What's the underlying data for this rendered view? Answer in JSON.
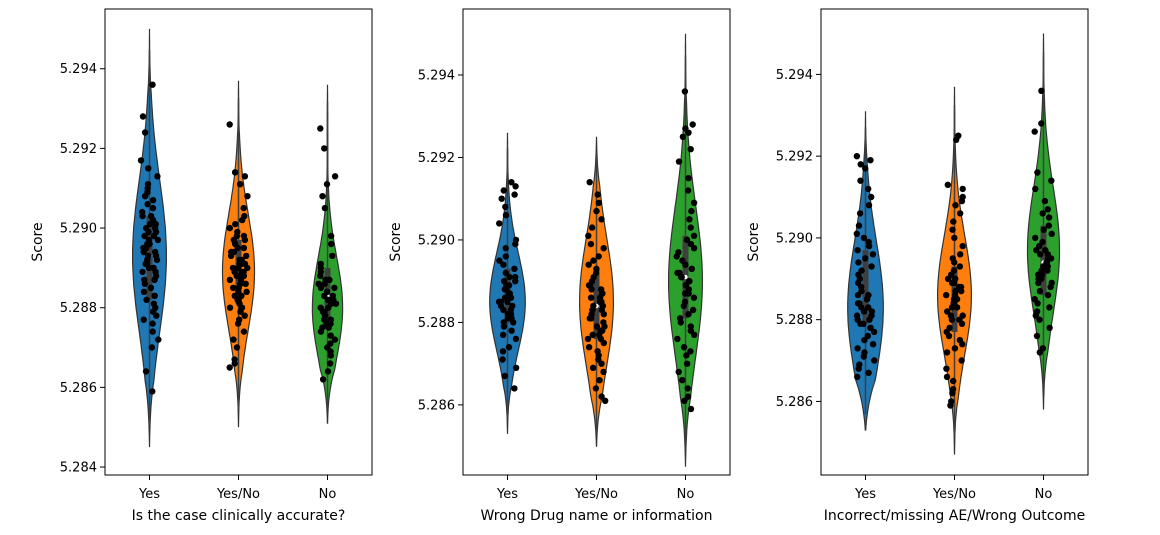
{
  "chart_data": [
    {
      "type": "violin",
      "xlabel": "Is the case clinically accurate?",
      "ylabel": "Score",
      "categories": [
        "Yes",
        "Yes/No",
        "No"
      ],
      "ylim": [
        5.2838,
        5.2955
      ],
      "yticks": [
        5.284,
        5.286,
        5.288,
        5.29,
        5.292,
        5.294
      ],
      "ytick_labels": [
        "5.284",
        "5.286",
        "5.288",
        "5.290",
        "5.292",
        "5.294"
      ],
      "series": [
        {
          "name": "Yes",
          "color": "#1f77b4",
          "extent": [
            5.2845,
            5.295
          ],
          "median": 5.2893,
          "q1": 5.2882,
          "q3": 5.2903,
          "max_halfwidth": 0.19,
          "mode": 5.2893,
          "points": [
            5.2859,
            5.2864,
            5.287,
            5.2872,
            5.2874,
            5.2876,
            5.2877,
            5.2878,
            5.2879,
            5.288,
            5.2881,
            5.2882,
            5.2883,
            5.2884,
            5.2885,
            5.2886,
            5.2887,
            5.2887,
            5.2888,
            5.2889,
            5.2889,
            5.289,
            5.289,
            5.2891,
            5.2891,
            5.2892,
            5.2892,
            5.2893,
            5.2893,
            5.2893,
            5.2894,
            5.2894,
            5.2895,
            5.2895,
            5.2896,
            5.2896,
            5.2897,
            5.2897,
            5.2898,
            5.2898,
            5.2899,
            5.2899,
            5.29,
            5.29,
            5.2901,
            5.2901,
            5.2902,
            5.2903,
            5.2903,
            5.2904,
            5.2905,
            5.2906,
            5.2907,
            5.2908,
            5.2909,
            5.291,
            5.2911,
            5.2913,
            5.2915,
            5.2917,
            5.2924,
            5.2928,
            5.2936
          ]
        },
        {
          "name": "Yes/No",
          "color": "#ff7f0e",
          "extent": [
            5.285,
            5.2937
          ],
          "median": 5.289,
          "q1": 5.2881,
          "q3": 5.2897,
          "max_halfwidth": 0.18,
          "mode": 5.2889,
          "points": [
            5.2865,
            5.2866,
            5.2867,
            5.287,
            5.2872,
            5.2874,
            5.2876,
            5.2877,
            5.2878,
            5.2879,
            5.288,
            5.288,
            5.2881,
            5.2882,
            5.2882,
            5.2883,
            5.2883,
            5.2884,
            5.2884,
            5.2885,
            5.2885,
            5.2886,
            5.2886,
            5.2887,
            5.2887,
            5.2888,
            5.2888,
            5.2888,
            5.2889,
            5.2889,
            5.2889,
            5.289,
            5.289,
            5.289,
            5.2891,
            5.2891,
            5.2891,
            5.2892,
            5.2892,
            5.2893,
            5.2893,
            5.2894,
            5.2894,
            5.2895,
            5.2895,
            5.2896,
            5.2897,
            5.2897,
            5.2898,
            5.2898,
            5.2899,
            5.29,
            5.2901,
            5.2902,
            5.2903,
            5.2905,
            5.2908,
            5.2911,
            5.2913,
            5.2914,
            5.2926
          ]
        },
        {
          "name": "No",
          "color": "#2ca02c",
          "extent": [
            5.2851,
            5.2936
          ],
          "median": 5.2883,
          "q1": 5.2876,
          "q3": 5.289,
          "max_halfwidth": 0.17,
          "mode": 5.288,
          "points": [
            5.2862,
            5.2864,
            5.2866,
            5.2868,
            5.2869,
            5.287,
            5.2871,
            5.2872,
            5.2873,
            5.2874,
            5.2875,
            5.2875,
            5.2876,
            5.2876,
            5.2877,
            5.2877,
            5.2878,
            5.2878,
            5.2879,
            5.2879,
            5.288,
            5.288,
            5.2881,
            5.2881,
            5.2882,
            5.2882,
            5.2883,
            5.2883,
            5.2884,
            5.2884,
            5.2885,
            5.2885,
            5.2886,
            5.2886,
            5.2887,
            5.2887,
            5.2888,
            5.2889,
            5.289,
            5.2891,
            5.2893,
            5.2896,
            5.2898,
            5.2905,
            5.2908,
            5.2911,
            5.2913,
            5.292,
            5.2925
          ]
        }
      ]
    },
    {
      "type": "violin",
      "xlabel": "Wrong Drug name or information",
      "ylabel": "Score",
      "categories": [
        "Yes",
        "Yes/No",
        "No"
      ],
      "ylim": [
        5.2843,
        5.2956
      ],
      "yticks": [
        5.286,
        5.288,
        5.29,
        5.292,
        5.294
      ],
      "ytick_labels": [
        "5.286",
        "5.288",
        "5.290",
        "5.292",
        "5.294"
      ],
      "series": [
        {
          "name": "Yes",
          "color": "#1f77b4",
          "extent": [
            5.2853,
            5.2926
          ],
          "median": 5.2886,
          "q1": 5.288,
          "q3": 5.2893,
          "max_halfwidth": 0.2,
          "mode": 5.2885,
          "points": [
            5.2864,
            5.2867,
            5.2869,
            5.2871,
            5.2873,
            5.2874,
            5.2876,
            5.2877,
            5.2878,
            5.2879,
            5.288,
            5.288,
            5.2881,
            5.2881,
            5.2882,
            5.2882,
            5.2883,
            5.2883,
            5.2884,
            5.2884,
            5.2885,
            5.2885,
            5.2885,
            5.2886,
            5.2886,
            5.2886,
            5.2887,
            5.2887,
            5.2888,
            5.2888,
            5.2889,
            5.2889,
            5.289,
            5.289,
            5.2891,
            5.2891,
            5.2892,
            5.2893,
            5.2894,
            5.2895,
            5.2896,
            5.2898,
            5.2899,
            5.29,
            5.2904,
            5.2906,
            5.2908,
            5.291,
            5.2911,
            5.2912,
            5.2913,
            5.2914
          ]
        },
        {
          "name": "Yes/No",
          "color": "#ff7f0e",
          "extent": [
            5.285,
            5.2925
          ],
          "median": 5.2884,
          "q1": 5.2876,
          "q3": 5.2893,
          "max_halfwidth": 0.19,
          "mode": 5.2885,
          "points": [
            5.2861,
            5.2862,
            5.2864,
            5.2866,
            5.2868,
            5.2869,
            5.287,
            5.2871,
            5.2872,
            5.2873,
            5.2874,
            5.2875,
            5.2876,
            5.2876,
            5.2877,
            5.2877,
            5.2878,
            5.2878,
            5.2879,
            5.2879,
            5.288,
            5.2881,
            5.2881,
            5.2882,
            5.2882,
            5.2883,
            5.2883,
            5.2884,
            5.2884,
            5.2885,
            5.2885,
            5.2886,
            5.2886,
            5.2887,
            5.2887,
            5.2888,
            5.2888,
            5.2889,
            5.2889,
            5.289,
            5.2891,
            5.2892,
            5.2893,
            5.2894,
            5.2895,
            5.2896,
            5.2898,
            5.2899,
            5.2901,
            5.2903,
            5.2905,
            5.2907,
            5.2909,
            5.2911,
            5.2914
          ]
        },
        {
          "name": "No",
          "color": "#2ca02c",
          "extent": [
            5.2845,
            5.295
          ],
          "median": 5.2891,
          "q1": 5.2881,
          "q3": 5.2901,
          "max_halfwidth": 0.19,
          "mode": 5.289,
          "points": [
            5.2859,
            5.2861,
            5.2862,
            5.2864,
            5.2866,
            5.2868,
            5.287,
            5.2872,
            5.2873,
            5.2874,
            5.2876,
            5.2877,
            5.2878,
            5.2879,
            5.288,
            5.2881,
            5.2882,
            5.2883,
            5.2884,
            5.2885,
            5.2886,
            5.2887,
            5.2887,
            5.2888,
            5.2889,
            5.2889,
            5.289,
            5.289,
            5.2891,
            5.2891,
            5.2892,
            5.2892,
            5.2893,
            5.2894,
            5.2895,
            5.2896,
            5.2897,
            5.2898,
            5.2899,
            5.29,
            5.2901,
            5.2903,
            5.2905,
            5.2907,
            5.2909,
            5.2912,
            5.2915,
            5.2919,
            5.2922,
            5.2925,
            5.2926,
            5.2927,
            5.2928,
            5.2936
          ]
        }
      ]
    },
    {
      "type": "violin",
      "xlabel": "Incorrect/missing AE/Wrong Outcome",
      "ylabel": "Score",
      "categories": [
        "Yes",
        "Yes/No",
        "No"
      ],
      "ylim": [
        5.2842,
        5.2956
      ],
      "yticks": [
        5.286,
        5.288,
        5.29,
        5.292,
        5.294
      ],
      "ytick_labels": [
        "5.286",
        "5.288",
        "5.290",
        "5.292",
        "5.294"
      ],
      "series": [
        {
          "name": "Yes",
          "color": "#1f77b4",
          "extent": [
            5.2853,
            5.2931
          ],
          "median": 5.2885,
          "q1": 5.2879,
          "q3": 5.2897,
          "max_halfwidth": 0.2,
          "mode": 5.2883,
          "points": [
            5.2866,
            5.2867,
            5.2868,
            5.2869,
            5.287,
            5.2871,
            5.2872,
            5.2873,
            5.2874,
            5.2875,
            5.2876,
            5.2877,
            5.2878,
            5.2878,
            5.2879,
            5.2879,
            5.288,
            5.288,
            5.2881,
            5.2881,
            5.2882,
            5.2882,
            5.2883,
            5.2883,
            5.2884,
            5.2884,
            5.2885,
            5.2885,
            5.2886,
            5.2886,
            5.2887,
            5.2888,
            5.2889,
            5.289,
            5.2891,
            5.2892,
            5.2893,
            5.2894,
            5.2895,
            5.2896,
            5.2897,
            5.2898,
            5.2899,
            5.29,
            5.2901,
            5.2903,
            5.2906,
            5.2908,
            5.291,
            5.2912,
            5.2914,
            5.2917,
            5.2918,
            5.2919,
            5.292
          ]
        },
        {
          "name": "Yes/No",
          "color": "#ff7f0e",
          "extent": [
            5.2847,
            5.2937
          ],
          "median": 5.2884,
          "q1": 5.2877,
          "q3": 5.2893,
          "max_halfwidth": 0.19,
          "mode": 5.2886,
          "points": [
            5.2859,
            5.286,
            5.2862,
            5.2863,
            5.2865,
            5.2866,
            5.2868,
            5.287,
            5.2872,
            5.2873,
            5.2874,
            5.2875,
            5.2876,
            5.2877,
            5.2878,
            5.2879,
            5.288,
            5.288,
            5.2881,
            5.2881,
            5.2882,
            5.2883,
            5.2883,
            5.2884,
            5.2884,
            5.2885,
            5.2885,
            5.2886,
            5.2886,
            5.2887,
            5.2887,
            5.2888,
            5.2888,
            5.2889,
            5.2889,
            5.289,
            5.289,
            5.2891,
            5.2892,
            5.2893,
            5.2894,
            5.2895,
            5.2896,
            5.2898,
            5.29,
            5.2902,
            5.2904,
            5.2906,
            5.2908,
            5.2909,
            5.291,
            5.2912,
            5.2913,
            5.2924,
            5.2925
          ]
        },
        {
          "name": "No",
          "color": "#2ca02c",
          "extent": [
            5.2858,
            5.295
          ],
          "median": 5.2894,
          "q1": 5.2886,
          "q3": 5.2903,
          "max_halfwidth": 0.18,
          "mode": 5.2897,
          "points": [
            5.2872,
            5.2873,
            5.2876,
            5.2878,
            5.288,
            5.2881,
            5.2882,
            5.2883,
            5.2884,
            5.2885,
            5.2886,
            5.2887,
            5.2888,
            5.2889,
            5.2889,
            5.289,
            5.289,
            5.2891,
            5.2891,
            5.2892,
            5.2892,
            5.2893,
            5.2893,
            5.2894,
            5.2894,
            5.2895,
            5.2895,
            5.2896,
            5.2896,
            5.2897,
            5.2897,
            5.2898,
            5.2899,
            5.29,
            5.2901,
            5.2902,
            5.2903,
            5.2905,
            5.2906,
            5.2907,
            5.2909,
            5.2912,
            5.2914,
            5.2916,
            5.2926,
            5.2928,
            5.2936
          ]
        }
      ]
    }
  ]
}
